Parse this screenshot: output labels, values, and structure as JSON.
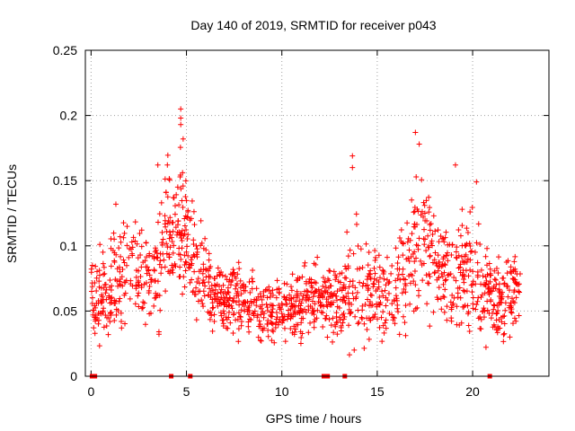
{
  "chart_data": {
    "type": "scatter",
    "title": "Day 140 of 2019, SRMTID for receiver p043",
    "xlabel": "GPS time / hours",
    "ylabel": "SRMTID / TECUs",
    "xlim": [
      -0.3,
      24
    ],
    "ylim": [
      0,
      0.25
    ],
    "grid": true,
    "marker": "+",
    "color": "#ff0000",
    "xticks": [
      {
        "value": 0,
        "label": "0"
      },
      {
        "value": 5,
        "label": "5"
      },
      {
        "value": 10,
        "label": "10"
      },
      {
        "value": 15,
        "label": "15"
      },
      {
        "value": 20,
        "label": "20"
      }
    ],
    "yticks": [
      {
        "value": 0,
        "label": "0"
      },
      {
        "value": 0.05,
        "label": "0.05"
      },
      {
        "value": 0.1,
        "label": "0.1"
      },
      {
        "value": 0.15,
        "label": "0.15"
      },
      {
        "value": 0.2,
        "label": "0.2"
      },
      {
        "value": 0.25,
        "label": "0.25"
      }
    ],
    "series": [
      {
        "name": "SRMTID",
        "envelope_hours": [
          0,
          0.5,
          1,
          1.5,
          2,
          2.5,
          3,
          3.5,
          4,
          4.5,
          5,
          5.5,
          6,
          6.5,
          7,
          7.5,
          8,
          8.5,
          9,
          9.5,
          10,
          10.5,
          11,
          11.5,
          12,
          12.5,
          13,
          13.5,
          14,
          14.5,
          15,
          15.5,
          16,
          16.5,
          17,
          17.5,
          18,
          18.5,
          19,
          19.5,
          20,
          20.5,
          21,
          21.5,
          22,
          22.5
        ],
        "envelope_mean": [
          0.065,
          0.055,
          0.06,
          0.075,
          0.085,
          0.075,
          0.07,
          0.085,
          0.11,
          0.12,
          0.11,
          0.08,
          0.07,
          0.065,
          0.06,
          0.062,
          0.058,
          0.055,
          0.05,
          0.05,
          0.052,
          0.055,
          0.055,
          0.06,
          0.06,
          0.055,
          0.058,
          0.065,
          0.07,
          0.06,
          0.065,
          0.06,
          0.065,
          0.075,
          0.1,
          0.11,
          0.085,
          0.08,
          0.075,
          0.08,
          0.075,
          0.065,
          0.06,
          0.055,
          0.06,
          0.07
        ],
        "envelope_spread": [
          0.015,
          0.02,
          0.02,
          0.025,
          0.025,
          0.025,
          0.025,
          0.03,
          0.03,
          0.035,
          0.03,
          0.02,
          0.018,
          0.015,
          0.015,
          0.015,
          0.015,
          0.014,
          0.014,
          0.014,
          0.014,
          0.015,
          0.015,
          0.015,
          0.015,
          0.015,
          0.018,
          0.025,
          0.03,
          0.02,
          0.02,
          0.02,
          0.025,
          0.025,
          0.03,
          0.035,
          0.025,
          0.025,
          0.025,
          0.025,
          0.025,
          0.02,
          0.02,
          0.02,
          0.02,
          0.02
        ],
        "peaks": [
          {
            "x": 3.5,
            "y": 0.162
          },
          {
            "x": 4.0,
            "y": 0.162
          },
          {
            "x": 4.7,
            "y": 0.205
          },
          {
            "x": 4.7,
            "y": 0.198
          },
          {
            "x": 4.7,
            "y": 0.193
          },
          {
            "x": 1.3,
            "y": 0.132
          },
          {
            "x": 13.7,
            "y": 0.169
          },
          {
            "x": 13.7,
            "y": 0.16
          },
          {
            "x": 17.0,
            "y": 0.187
          },
          {
            "x": 17.2,
            "y": 0.178
          },
          {
            "x": 19.1,
            "y": 0.162
          },
          {
            "x": 20.2,
            "y": 0.149
          }
        ],
        "zero_values_hours": [
          0.05,
          0.1,
          0.15,
          0.2,
          4.2,
          5.2,
          12.2,
          12.3,
          12.4,
          13.3,
          20.9
        ]
      }
    ]
  }
}
